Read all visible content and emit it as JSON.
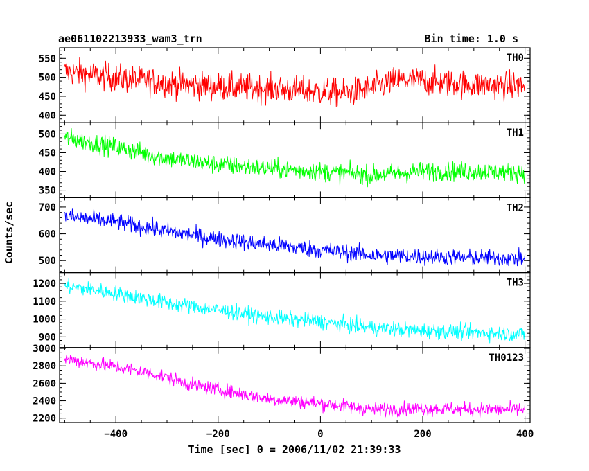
{
  "header": {
    "title": "ae061102213933_wam3_trn",
    "bin_time": "Bin time: 1.0 s"
  },
  "chart_data": {
    "type": "line",
    "xlabel": "Time [sec] 0 = 2006/11/02 21:39:33",
    "ylabel": "Counts/sec",
    "xlim": [
      -510,
      410
    ],
    "x_ticks": [
      -400,
      -200,
      0,
      200,
      400
    ],
    "x_tick_labels": [
      "−400",
      "−200",
      "0",
      "200",
      "400"
    ],
    "x_minor_step": 50,
    "x_range_data": [
      -500,
      400
    ],
    "bin_time_s": 1.0,
    "grid": false,
    "panels": [
      {
        "name": "TH0",
        "color": "#ff0000",
        "ylim": [
          380,
          578
        ],
        "y_ticks": [
          400,
          450,
          500,
          550
        ],
        "y_minor_step": 10,
        "trend": [
          [
            -500,
            515
          ],
          [
            -400,
            498
          ],
          [
            -300,
            485
          ],
          [
            -200,
            475
          ],
          [
            -100,
            470
          ],
          [
            0,
            462
          ],
          [
            50,
            458
          ],
          [
            100,
            470
          ],
          [
            150,
            493
          ],
          [
            200,
            490
          ],
          [
            300,
            480
          ],
          [
            400,
            478
          ]
        ],
        "noise": 26
      },
      {
        "name": "TH1",
        "color": "#00ff00",
        "ylim": [
          330,
          530
        ],
        "y_ticks": [
          350,
          400,
          450,
          500
        ],
        "y_minor_step": 10,
        "trend": [
          [
            -500,
            490
          ],
          [
            -400,
            465
          ],
          [
            -300,
            435
          ],
          [
            -200,
            418
          ],
          [
            -100,
            408
          ],
          [
            0,
            400
          ],
          [
            100,
            390
          ],
          [
            200,
            400
          ],
          [
            300,
            400
          ],
          [
            400,
            398
          ]
        ],
        "noise": 18
      },
      {
        "name": "TH2",
        "color": "#0000ff",
        "ylim": [
          455,
          735
        ],
        "y_ticks": [
          500,
          600,
          700
        ],
        "y_minor_step": 20,
        "trend": [
          [
            -500,
            665
          ],
          [
            -400,
            645
          ],
          [
            -300,
            610
          ],
          [
            -200,
            580
          ],
          [
            -100,
            560
          ],
          [
            0,
            540
          ],
          [
            100,
            520
          ],
          [
            200,
            515
          ],
          [
            300,
            510
          ],
          [
            400,
            508
          ]
        ],
        "noise": 22
      },
      {
        "name": "TH3",
        "color": "#00ffff",
        "ylim": [
          840,
          1260
        ],
        "y_ticks": [
          900,
          1000,
          1100,
          1200
        ],
        "y_minor_step": 20,
        "trend": [
          [
            -500,
            1185
          ],
          [
            -400,
            1145
          ],
          [
            -300,
            1090
          ],
          [
            -200,
            1050
          ],
          [
            -100,
            1010
          ],
          [
            0,
            985
          ],
          [
            100,
            950
          ],
          [
            200,
            935
          ],
          [
            300,
            925
          ],
          [
            400,
            915
          ]
        ],
        "noise": 30
      },
      {
        "name": "TH0123",
        "color": "#ff00ff",
        "ylim": [
          2150,
          3010
        ],
        "y_ticks": [
          2200,
          2400,
          2600,
          2800,
          3000
        ],
        "y_minor_step": 50,
        "trend": [
          [
            -500,
            2880
          ],
          [
            -400,
            2790
          ],
          [
            -320,
            2700
          ],
          [
            -250,
            2580
          ],
          [
            -200,
            2530
          ],
          [
            -100,
            2420
          ],
          [
            0,
            2370
          ],
          [
            100,
            2300
          ],
          [
            200,
            2310
          ],
          [
            300,
            2300
          ],
          [
            400,
            2300
          ]
        ],
        "noise": 55
      }
    ]
  }
}
